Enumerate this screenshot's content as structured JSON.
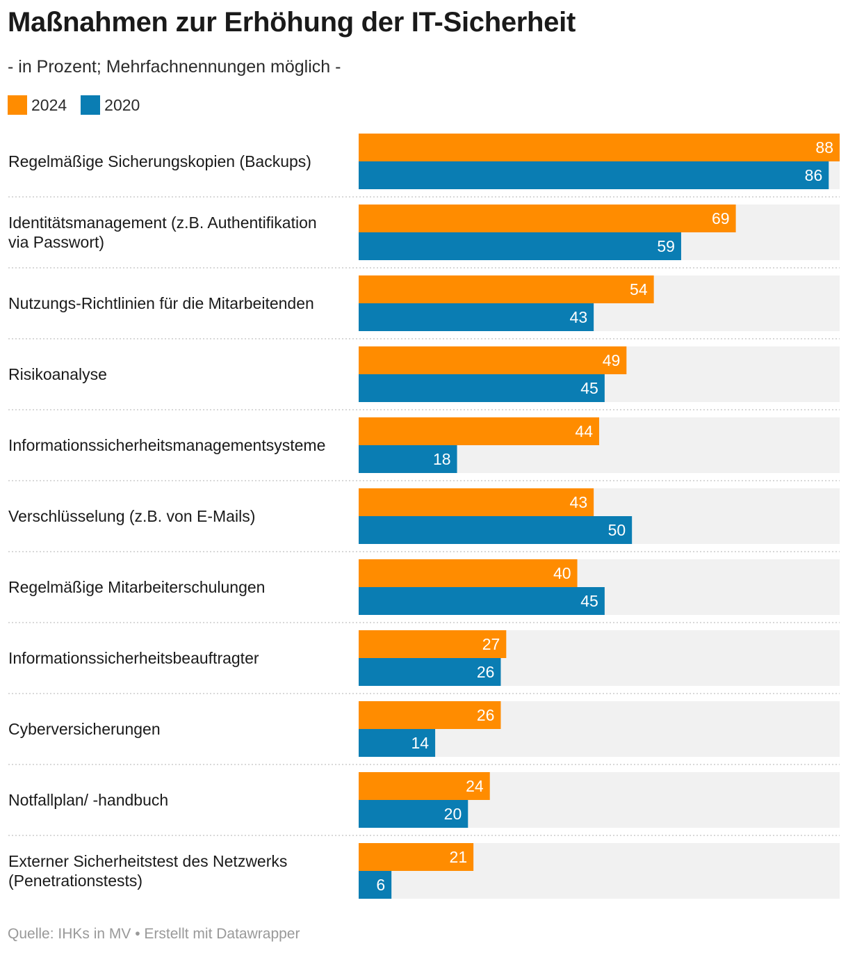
{
  "title": "Maßnahmen zur Erhöhung der IT-Sicherheit",
  "subtitle": "- in Prozent; Mehrfachnennungen möglich -",
  "footer": "Quelle: IHKs in MV • Erstellt mit Datawrapper",
  "colors": {
    "s2024": "#ff8c00",
    "s2020": "#0a7db3",
    "track": "#f1f1f1",
    "divider": "#cccccc"
  },
  "chart_data": {
    "type": "bar",
    "orientation": "horizontal",
    "xlim": [
      0,
      88
    ],
    "legend_position": "top-left",
    "categories": [
      [
        "Regelmäßige Sicherungskopien (Backups)"
      ],
      [
        "Identitätsmanagement (z.B. Authentifikation",
        "via Passwort)"
      ],
      [
        "Nutzungs-Richtlinien für die Mitarbeitenden"
      ],
      [
        "Risikoanalyse"
      ],
      [
        "Informationssicherheitsmanagementsysteme"
      ],
      [
        "Verschlüsselung (z.B. von E-Mails)"
      ],
      [
        "Regelmäßige Mitarbeiterschulungen"
      ],
      [
        "Informationssicherheitsbeauftragter"
      ],
      [
        "Cyberversicherungen"
      ],
      [
        "Notfallplan/ -handbuch"
      ],
      [
        "Externer Sicherheitstest des Netzwerks",
        "(Penetrationstests)"
      ]
    ],
    "series": [
      {
        "name": "2024",
        "color": "#ff8c00",
        "values": [
          88,
          69,
          54,
          49,
          44,
          43,
          40,
          27,
          26,
          24,
          21
        ]
      },
      {
        "name": "2020",
        "color": "#0a7db3",
        "values": [
          86,
          59,
          43,
          45,
          18,
          50,
          45,
          26,
          14,
          20,
          6
        ]
      }
    ]
  }
}
